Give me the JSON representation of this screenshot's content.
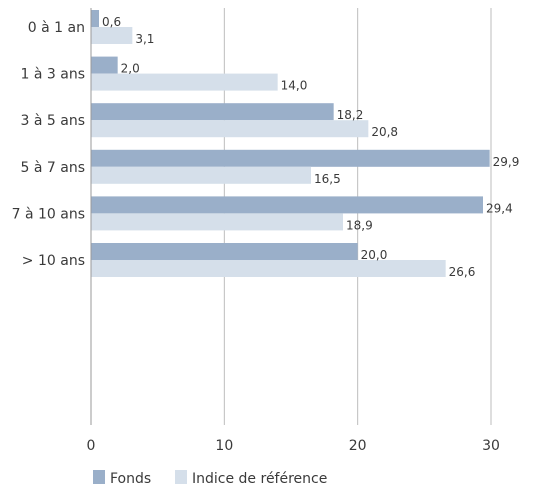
{
  "chart_data": {
    "type": "bar",
    "orientation": "horizontal",
    "categories": [
      "0 à 1 an",
      "1 à 3 ans",
      "3 à 5 ans",
      "5 à 7 ans",
      "7 à 10 ans",
      "> 10 ans"
    ],
    "series": [
      {
        "name": "Fonds",
        "color": "#9aafc9",
        "values": [
          0.6,
          2.0,
          18.2,
          29.9,
          29.4,
          20.0
        ],
        "labels": [
          "0,6",
          "2,0",
          "18,2",
          "29,9",
          "29,4",
          "20,0"
        ]
      },
      {
        "name": "Indice de référence",
        "color": "#d5dfea",
        "values": [
          3.1,
          14.0,
          20.8,
          16.5,
          18.9,
          26.6
        ],
        "labels": [
          "3,1",
          "14,0",
          "20,8",
          "16,5",
          "18,9",
          "26,6"
        ]
      }
    ],
    "xlim": [
      0,
      30
    ],
    "xticks": [
      0,
      10,
      20,
      30
    ],
    "xtick_labels": [
      "0",
      "10",
      "20",
      "30"
    ],
    "title": "",
    "xlabel": "",
    "ylabel": "",
    "grid": "vertical",
    "legend": "bottom-left"
  }
}
